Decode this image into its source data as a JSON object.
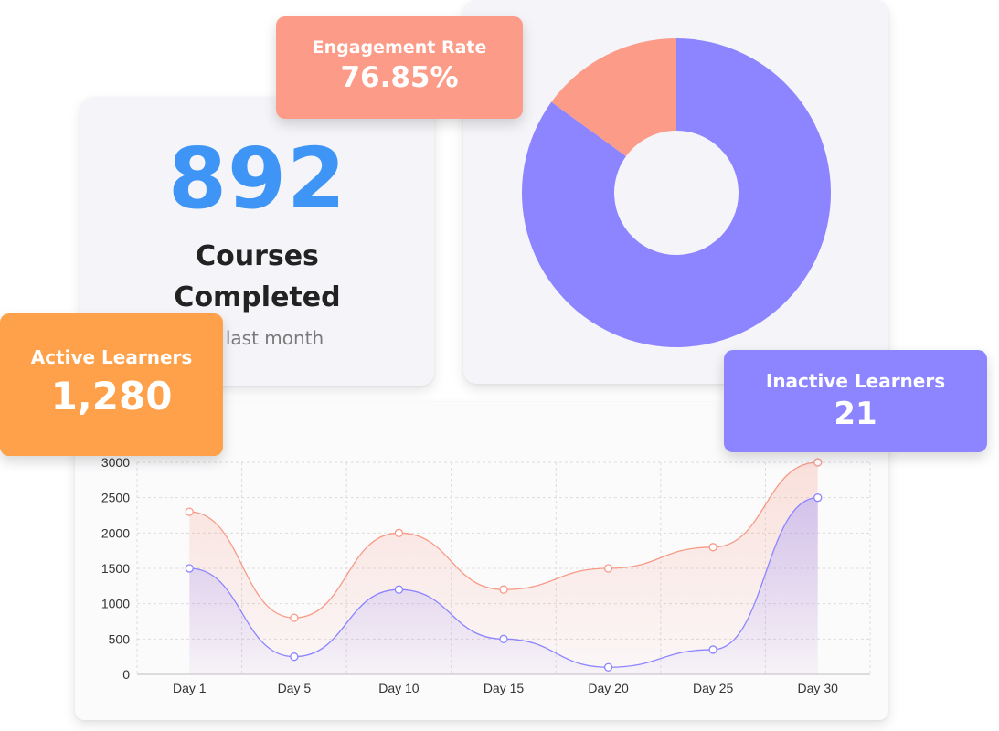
{
  "courses": {
    "value": "892",
    "label_line1": "Courses",
    "label_line2": "Completed",
    "sub_text": "om last month"
  },
  "engagement": {
    "title": "Engagement Rate",
    "value": "76.85%"
  },
  "active_learners": {
    "title": "Active Learners",
    "value": "1,280"
  },
  "inactive_learners": {
    "title": "Inactive Learners",
    "value": "21"
  },
  "donut": {
    "slices": [
      {
        "fraction": 0.85,
        "color": "#8c85ff"
      },
      {
        "fraction": 0.15,
        "color": "#fc9b87"
      }
    ]
  },
  "colors": {
    "blue_number": "#3e95f5",
    "coral": "#fc9b87",
    "purple": "#8c85ff",
    "orange": "#fea14a"
  },
  "chart_data": {
    "type": "area",
    "categories": [
      "Day 1",
      "Day 5",
      "Day 10",
      "Day 15",
      "Day 20",
      "Day 25",
      "Day 30"
    ],
    "series": [
      {
        "values": [
          2300,
          800,
          2000,
          1200,
          1500,
          1800,
          3000
        ],
        "color": "#f79a87"
      },
      {
        "values": [
          1500,
          250,
          1200,
          500,
          100,
          350,
          2500
        ],
        "color": "#8c85ff"
      }
    ],
    "ylim": [
      0,
      3000
    ],
    "yticks": [
      "0",
      "500",
      "1000",
      "1500",
      "2000",
      "2500",
      "3000"
    ],
    "grid": true
  }
}
